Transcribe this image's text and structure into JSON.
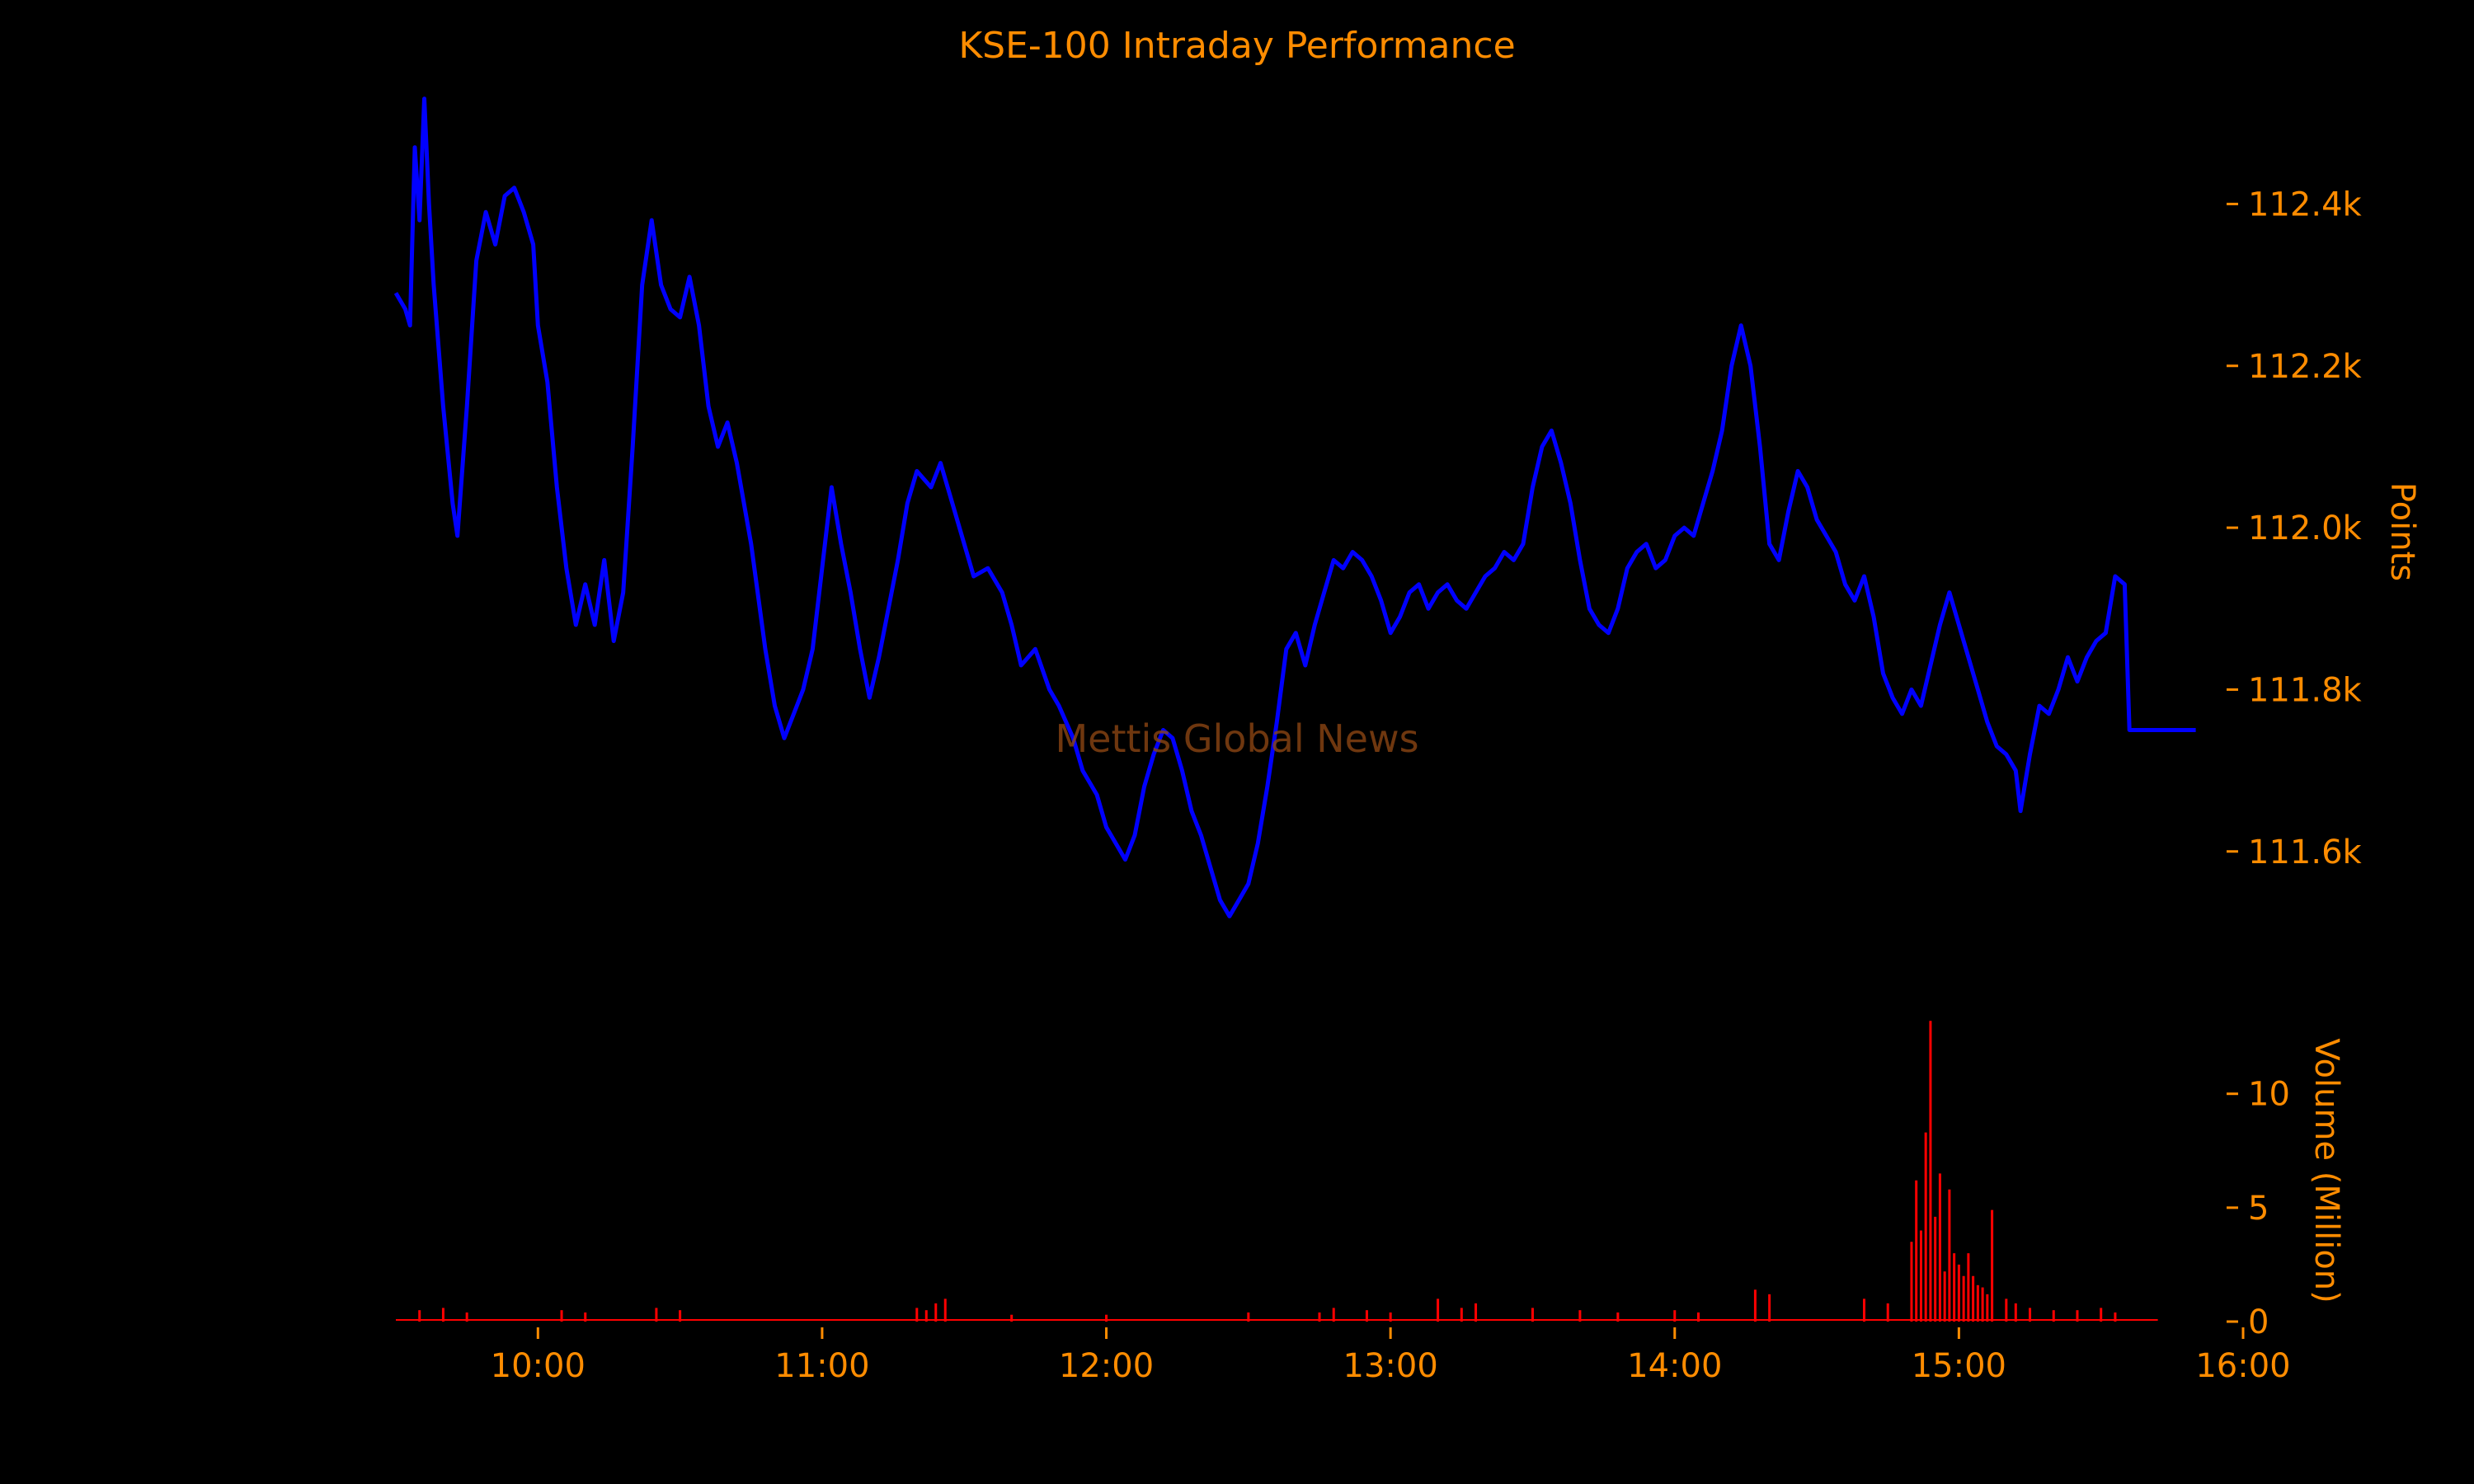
{
  "chart_data": {
    "type": "line",
    "title": "KSE-100 Intraday Performance",
    "watermark": "Mettis Global News",
    "colors": {
      "background": "#000000",
      "text": "#FF8C00",
      "index_line": "#0000FF",
      "volume_bars": "#FF0000",
      "watermark": "#8B4513"
    },
    "x_axis": {
      "ticks": [
        "10:00",
        "11:00",
        "12:00",
        "13:00",
        "14:00",
        "15:00",
        "16:00"
      ],
      "range": [
        "09:30",
        "16:00"
      ]
    },
    "price_panel": {
      "ylabel": "Points",
      "ytick_labels": [
        "111.6k",
        "111.8k",
        "112.0k",
        "112.2k",
        "112.4k"
      ],
      "yticks": [
        111600,
        111800,
        112000,
        112200,
        112400
      ],
      "ylim": [
        111450,
        112540
      ],
      "axis_side": "right",
      "series": [
        {
          "points": [
            [
              "09:30",
              112290
            ],
            [
              "09:32",
              112270
            ],
            [
              "09:33",
              112250
            ],
            [
              "09:34",
              112470
            ],
            [
              "09:35",
              112380
            ],
            [
              "09:36",
              112530
            ],
            [
              "09:37",
              112400
            ],
            [
              "09:38",
              112300
            ],
            [
              "09:40",
              112150
            ],
            [
              "09:42",
              112030
            ],
            [
              "09:43",
              111990
            ],
            [
              "09:45",
              112150
            ],
            [
              "09:47",
              112330
            ],
            [
              "09:49",
              112390
            ],
            [
              "09:51",
              112350
            ],
            [
              "09:53",
              112410
            ],
            [
              "09:55",
              112420
            ],
            [
              "09:57",
              112390
            ],
            [
              "09:59",
              112350
            ],
            [
              "10:00",
              112250
            ],
            [
              "10:02",
              112180
            ],
            [
              "10:04",
              112050
            ],
            [
              "10:06",
              111950
            ],
            [
              "10:08",
              111880
            ],
            [
              "10:10",
              111930
            ],
            [
              "10:12",
              111880
            ],
            [
              "10:14",
              111960
            ],
            [
              "10:16",
              111860
            ],
            [
              "10:18",
              111920
            ],
            [
              "10:20",
              112100
            ],
            [
              "10:22",
              112300
            ],
            [
              "10:24",
              112380
            ],
            [
              "10:26",
              112300
            ],
            [
              "10:28",
              112270
            ],
            [
              "10:30",
              112260
            ],
            [
              "10:32",
              112310
            ],
            [
              "10:34",
              112250
            ],
            [
              "10:36",
              112150
            ],
            [
              "10:38",
              112100
            ],
            [
              "10:40",
              112130
            ],
            [
              "10:42",
              112080
            ],
            [
              "10:45",
              111980
            ],
            [
              "10:48",
              111850
            ],
            [
              "10:50",
              111780
            ],
            [
              "10:52",
              111740
            ],
            [
              "10:54",
              111770
            ],
            [
              "10:56",
              111800
            ],
            [
              "10:58",
              111850
            ],
            [
              "11:00",
              111950
            ],
            [
              "11:02",
              112050
            ],
            [
              "11:04",
              111980
            ],
            [
              "11:06",
              111920
            ],
            [
              "11:08",
              111850
            ],
            [
              "11:10",
              111790
            ],
            [
              "11:12",
              111840
            ],
            [
              "11:14",
              111900
            ],
            [
              "11:16",
              111960
            ],
            [
              "11:18",
              112030
            ],
            [
              "11:20",
              112070
            ],
            [
              "11:23",
              112050
            ],
            [
              "11:25",
              112080
            ],
            [
              "11:27",
              112040
            ],
            [
              "11:30",
              111980
            ],
            [
              "11:32",
              111940
            ],
            [
              "11:35",
              111950
            ],
            [
              "11:38",
              111920
            ],
            [
              "11:40",
              111880
            ],
            [
              "11:42",
              111830
            ],
            [
              "11:45",
              111850
            ],
            [
              "11:48",
              111800
            ],
            [
              "11:50",
              111780
            ],
            [
              "11:53",
              111740
            ],
            [
              "11:55",
              111700
            ],
            [
              "11:58",
              111670
            ],
            [
              "12:00",
              111630
            ],
            [
              "12:02",
              111610
            ],
            [
              "12:04",
              111590
            ],
            [
              "12:06",
              111620
            ],
            [
              "12:08",
              111680
            ],
            [
              "12:10",
              111720
            ],
            [
              "12:12",
              111750
            ],
            [
              "12:14",
              111740
            ],
            [
              "12:16",
              111700
            ],
            [
              "12:18",
              111650
            ],
            [
              "12:20",
              111620
            ],
            [
              "12:22",
              111580
            ],
            [
              "12:24",
              111540
            ],
            [
              "12:26",
              111520
            ],
            [
              "12:28",
              111540
            ],
            [
              "12:30",
              111560
            ],
            [
              "12:32",
              111610
            ],
            [
              "12:34",
              111680
            ],
            [
              "12:36",
              111760
            ],
            [
              "12:38",
              111850
            ],
            [
              "12:40",
              111870
            ],
            [
              "12:42",
              111830
            ],
            [
              "12:44",
              111880
            ],
            [
              "12:46",
              111920
            ],
            [
              "12:48",
              111960
            ],
            [
              "12:50",
              111950
            ],
            [
              "12:52",
              111970
            ],
            [
              "12:54",
              111960
            ],
            [
              "12:56",
              111940
            ],
            [
              "12:58",
              111910
            ],
            [
              "13:00",
              111870
            ],
            [
              "13:02",
              111890
            ],
            [
              "13:04",
              111920
            ],
            [
              "13:06",
              111930
            ],
            [
              "13:08",
              111900
            ],
            [
              "13:10",
              111920
            ],
            [
              "13:12",
              111930
            ],
            [
              "13:14",
              111910
            ],
            [
              "13:16",
              111900
            ],
            [
              "13:18",
              111920
            ],
            [
              "13:20",
              111940
            ],
            [
              "13:22",
              111950
            ],
            [
              "13:24",
              111970
            ],
            [
              "13:26",
              111960
            ],
            [
              "13:28",
              111980
            ],
            [
              "13:30",
              112050
            ],
            [
              "13:32",
              112100
            ],
            [
              "13:34",
              112120
            ],
            [
              "13:36",
              112080
            ],
            [
              "13:38",
              112030
            ],
            [
              "13:40",
              111960
            ],
            [
              "13:42",
              111900
            ],
            [
              "13:44",
              111880
            ],
            [
              "13:46",
              111870
            ],
            [
              "13:48",
              111900
            ],
            [
              "13:50",
              111950
            ],
            [
              "13:52",
              111970
            ],
            [
              "13:54",
              111980
            ],
            [
              "13:56",
              111950
            ],
            [
              "13:58",
              111960
            ],
            [
              "14:00",
              111990
            ],
            [
              "14:02",
              112000
            ],
            [
              "14:04",
              111990
            ],
            [
              "14:06",
              112030
            ],
            [
              "14:08",
              112070
            ],
            [
              "14:10",
              112120
            ],
            [
              "14:12",
              112200
            ],
            [
              "14:14",
              112250
            ],
            [
              "14:16",
              112200
            ],
            [
              "14:18",
              112100
            ],
            [
              "14:20",
              111980
            ],
            [
              "14:22",
              111960
            ],
            [
              "14:24",
              112020
            ],
            [
              "14:26",
              112070
            ],
            [
              "14:28",
              112050
            ],
            [
              "14:30",
              112010
            ],
            [
              "14:32",
              111990
            ],
            [
              "14:34",
              111970
            ],
            [
              "14:36",
              111930
            ],
            [
              "14:38",
              111910
            ],
            [
              "14:40",
              111940
            ],
            [
              "14:42",
              111890
            ],
            [
              "14:44",
              111820
            ],
            [
              "14:46",
              111790
            ],
            [
              "14:48",
              111770
            ],
            [
              "14:50",
              111800
            ],
            [
              "14:52",
              111780
            ],
            [
              "14:54",
              111830
            ],
            [
              "14:56",
              111880
            ],
            [
              "14:58",
              111920
            ],
            [
              "15:00",
              111880
            ],
            [
              "15:02",
              111840
            ],
            [
              "15:04",
              111800
            ],
            [
              "15:06",
              111760
            ],
            [
              "15:08",
              111730
            ],
            [
              "15:10",
              111720
            ],
            [
              "15:12",
              111700
            ],
            [
              "15:13",
              111650
            ],
            [
              "15:15",
              111720
            ],
            [
              "15:17",
              111780
            ],
            [
              "15:19",
              111770
            ],
            [
              "15:21",
              111800
            ],
            [
              "15:23",
              111840
            ],
            [
              "15:25",
              111810
            ],
            [
              "15:27",
              111840
            ],
            [
              "15:29",
              111860
            ],
            [
              "15:31",
              111870
            ],
            [
              "15:33",
              111940
            ],
            [
              "15:35",
              111930
            ],
            [
              "15:36",
              111750
            ],
            [
              "15:50",
              111750
            ]
          ]
        }
      ]
    },
    "volume_panel": {
      "ylabel": "Volume (Million)",
      "ytick_labels": [
        "0",
        "5",
        "10"
      ],
      "yticks": [
        0,
        5,
        10
      ],
      "ylim": [
        0,
        13.5
      ],
      "axis_side": "right",
      "spikes": [
        [
          "09:35",
          0.5
        ],
        [
          "09:40",
          0.6
        ],
        [
          "09:45",
          0.4
        ],
        [
          "10:05",
          0.5
        ],
        [
          "10:10",
          0.4
        ],
        [
          "10:25",
          0.6
        ],
        [
          "10:30",
          0.5
        ],
        [
          "11:20",
          0.6
        ],
        [
          "11:22",
          0.5
        ],
        [
          "11:24",
          0.8
        ],
        [
          "11:26",
          1.0
        ],
        [
          "11:40",
          0.3
        ],
        [
          "12:00",
          0.3
        ],
        [
          "12:30",
          0.4
        ],
        [
          "12:45",
          0.4
        ],
        [
          "12:48",
          0.6
        ],
        [
          "12:55",
          0.5
        ],
        [
          "13:00",
          0.4
        ],
        [
          "13:10",
          1.0
        ],
        [
          "13:15",
          0.6
        ],
        [
          "13:18",
          0.8
        ],
        [
          "13:30",
          0.6
        ],
        [
          "13:40",
          0.5
        ],
        [
          "13:48",
          0.4
        ],
        [
          "14:00",
          0.5
        ],
        [
          "14:05",
          0.4
        ],
        [
          "14:17",
          1.4
        ],
        [
          "14:20",
          1.2
        ],
        [
          "14:40",
          1.0
        ],
        [
          "14:45",
          0.8
        ],
        [
          "14:50",
          3.5
        ],
        [
          "14:51",
          6.2
        ],
        [
          "14:52",
          4.0
        ],
        [
          "14:53",
          8.3
        ],
        [
          "14:54",
          13.2
        ],
        [
          "14:55",
          4.6
        ],
        [
          "14:56",
          6.5
        ],
        [
          "14:57",
          2.2
        ],
        [
          "14:58",
          5.8
        ],
        [
          "14:59",
          3.0
        ],
        [
          "15:00",
          2.5
        ],
        [
          "15:01",
          2.0
        ],
        [
          "15:02",
          3.0
        ],
        [
          "15:03",
          2.0
        ],
        [
          "15:04",
          1.6
        ],
        [
          "15:05",
          1.5
        ],
        [
          "15:06",
          1.2
        ],
        [
          "15:07",
          4.9
        ],
        [
          "15:10",
          1.0
        ],
        [
          "15:12",
          0.8
        ],
        [
          "15:15",
          0.6
        ],
        [
          "15:20",
          0.5
        ],
        [
          "15:25",
          0.5
        ],
        [
          "15:30",
          0.6
        ],
        [
          "15:33",
          0.4
        ]
      ]
    }
  }
}
